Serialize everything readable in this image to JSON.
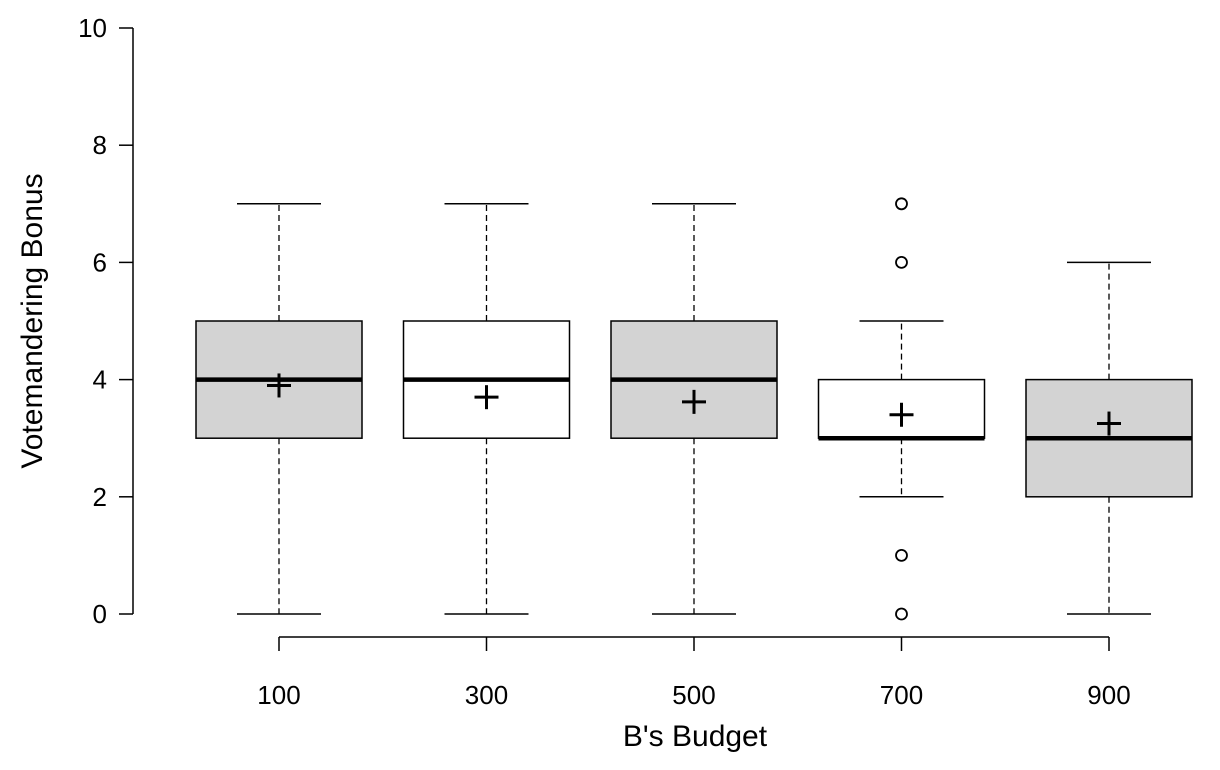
{
  "chart_data": {
    "type": "box",
    "xlabel": "B's Budget",
    "ylabel": "Votemandering Bonus",
    "ylim": [
      0,
      10
    ],
    "yticks": [
      "0",
      "2",
      "4",
      "6",
      "8",
      "10"
    ],
    "categories": [
      "100",
      "300",
      "500",
      "700",
      "900"
    ],
    "boxes": [
      {
        "category": "100",
        "min": 0,
        "q1": 3,
        "median": 4,
        "q3": 5,
        "max": 7,
        "mean": 3.9,
        "outliers": [],
        "fill": "#d3d3d3"
      },
      {
        "category": "300",
        "min": 0,
        "q1": 3,
        "median": 4,
        "q3": 5,
        "max": 7,
        "mean": 3.7,
        "outliers": [],
        "fill": "#ffffff"
      },
      {
        "category": "500",
        "min": 0,
        "q1": 3,
        "median": 4,
        "q3": 5,
        "max": 7,
        "mean": 3.62,
        "outliers": [],
        "fill": "#d3d3d3"
      },
      {
        "category": "700",
        "min": 2,
        "q1": 3,
        "median": 3,
        "q3": 4,
        "max": 5,
        "mean": 3.4,
        "outliers": [
          0,
          1,
          6,
          7
        ],
        "fill": "#ffffff"
      },
      {
        "category": "900",
        "min": 0,
        "q1": 2,
        "median": 3,
        "q3": 4,
        "max": 6,
        "mean": 3.25,
        "outliers": [],
        "fill": "#d3d3d3"
      }
    ],
    "grid": false,
    "legend": "none"
  }
}
